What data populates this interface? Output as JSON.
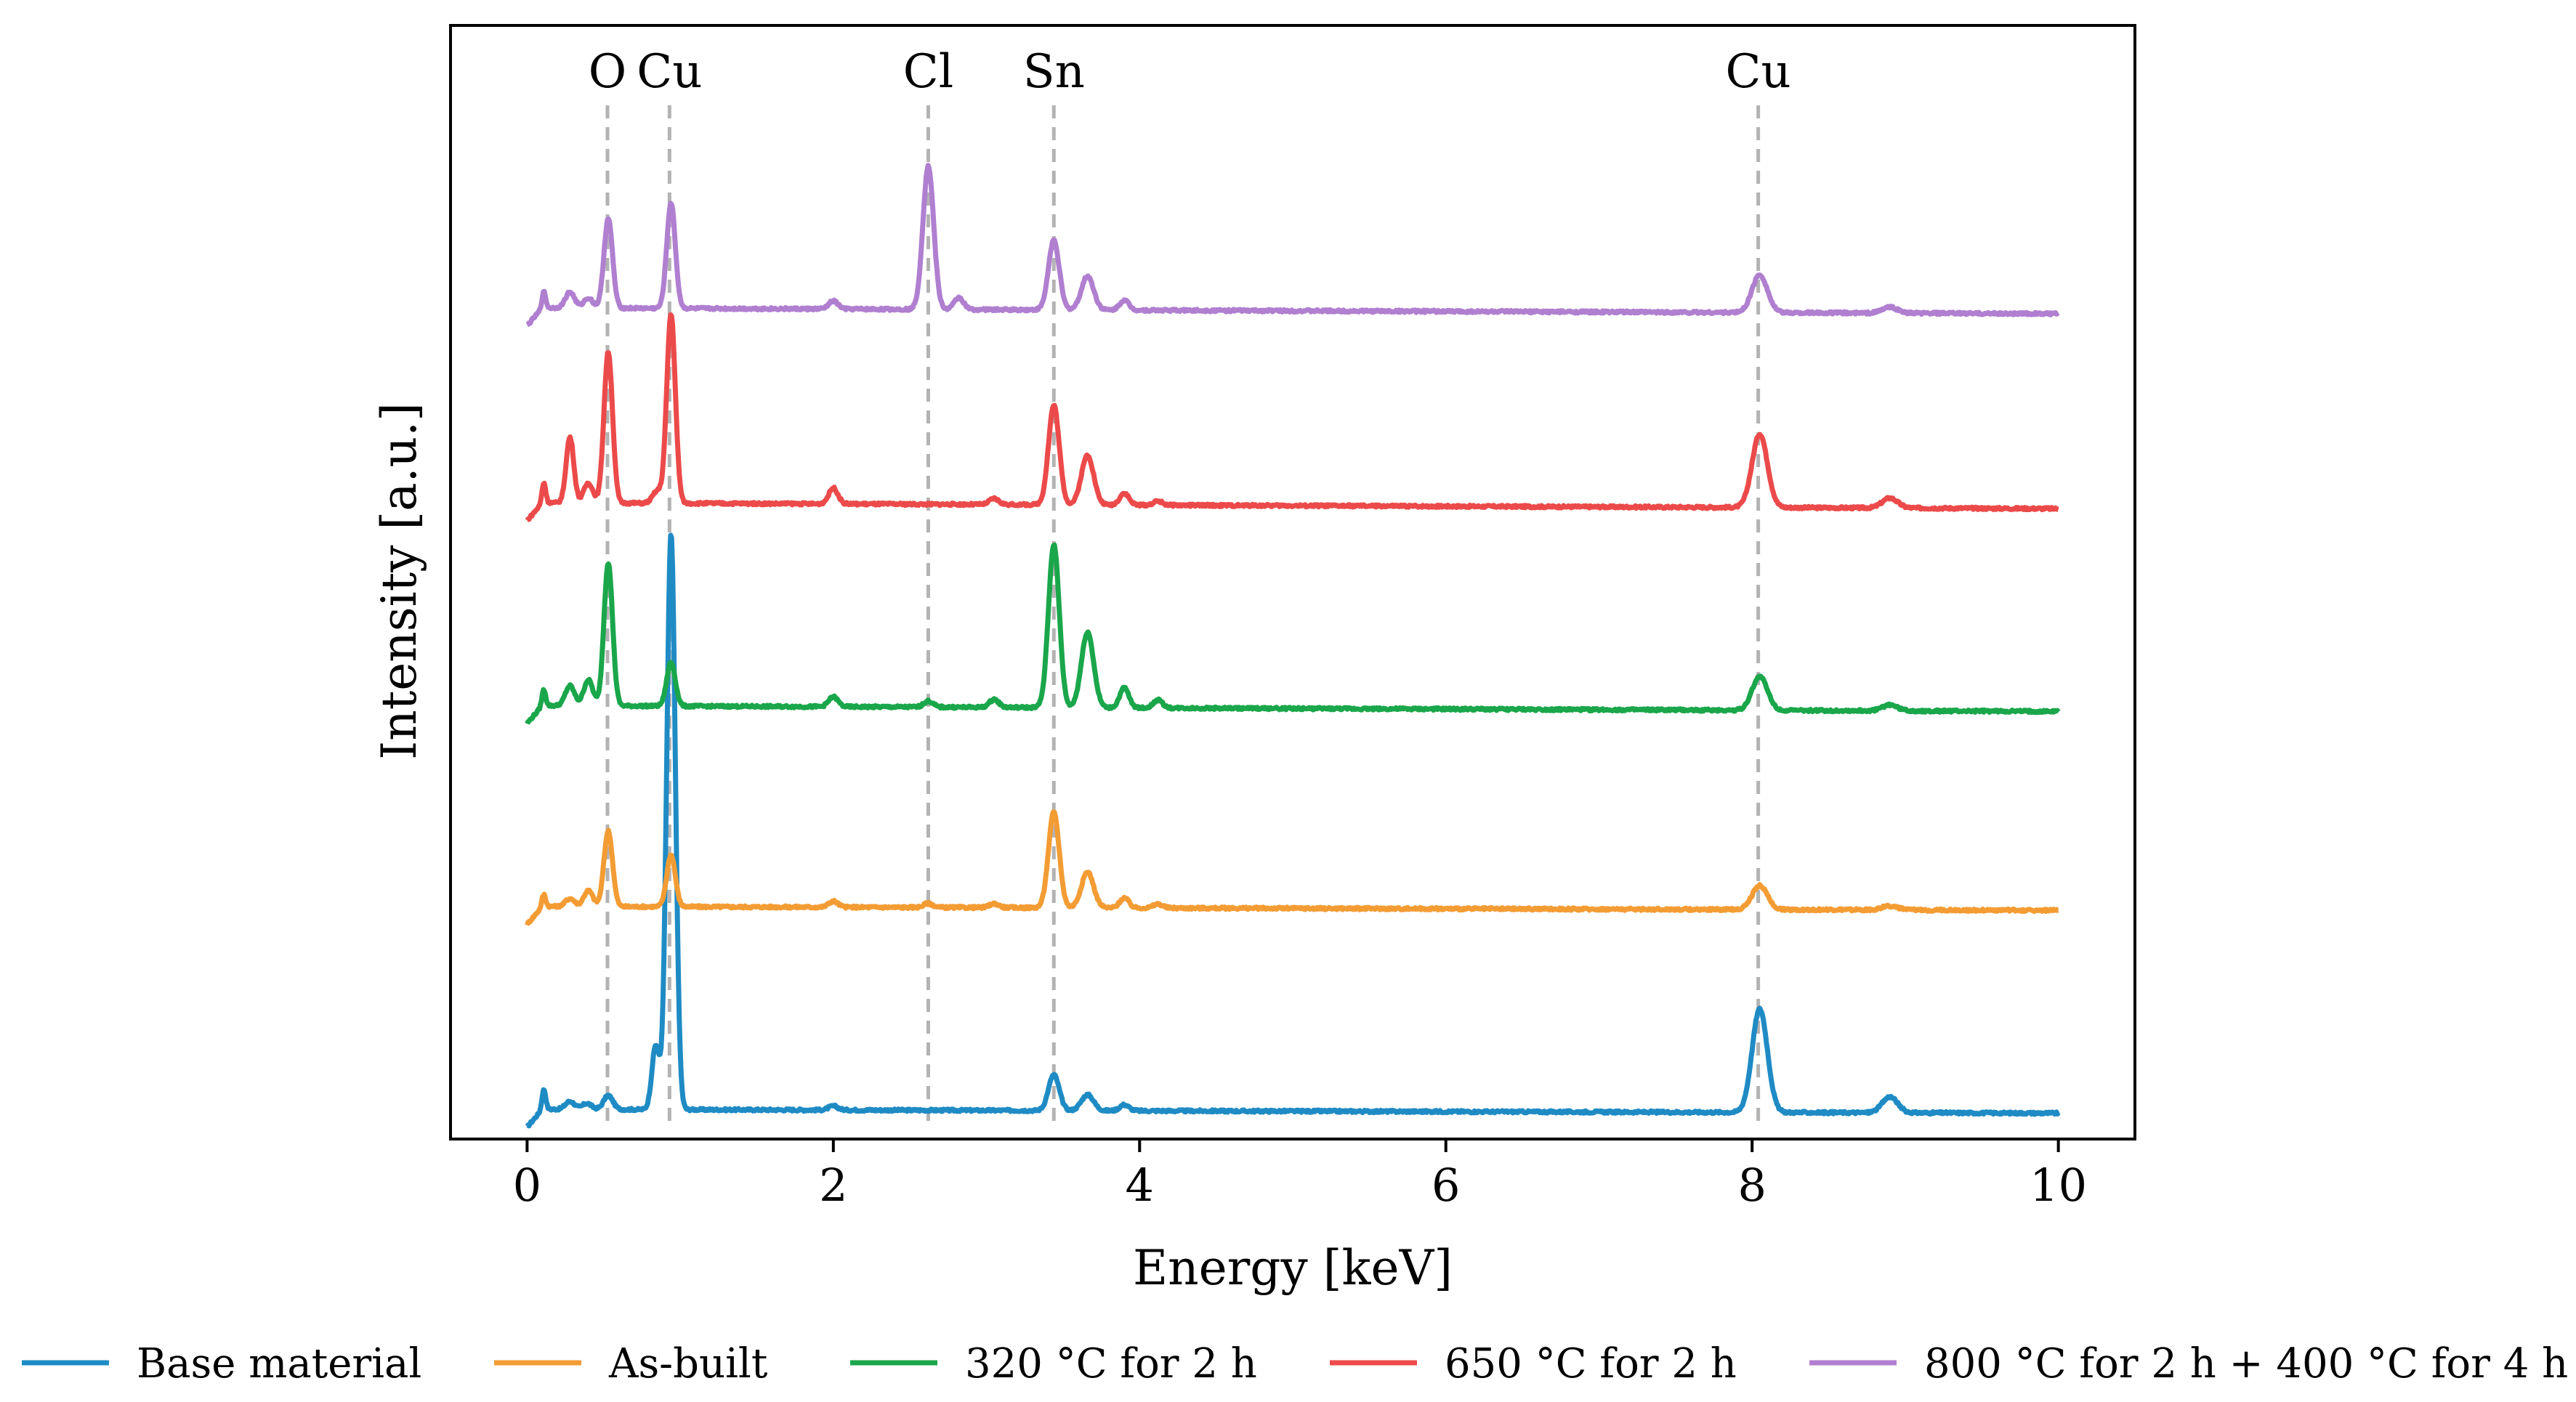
{
  "chart_data": {
    "type": "line",
    "title": "",
    "xlabel": "Energy [keV]",
    "ylabel": "Intensity [a.u.]",
    "xlim": [
      -0.5,
      10.5
    ],
    "ylim": [
      0,
      5.6
    ],
    "xticks": [
      0,
      2,
      4,
      6,
      8,
      10
    ],
    "xtick_labels": [
      "0",
      "2",
      "4",
      "6",
      "8",
      "10"
    ],
    "yticks_visible": false,
    "grid": false,
    "legend_position": "bottom",
    "element_lines": [
      {
        "label": "O",
        "energy": 0.525
      },
      {
        "label": "Cu",
        "energy": 0.93
      },
      {
        "label": "Cl",
        "energy": 2.62
      },
      {
        "label": "Sn",
        "energy": 3.44
      },
      {
        "label": "Cu",
        "energy": 8.04
      }
    ],
    "series": [
      {
        "name": "Base material",
        "color": "#1f8bc4",
        "baseline_start": 0.15,
        "baseline_end": 0.13,
        "peaks": [
          [
            0.11,
            0.1,
            0.012
          ],
          [
            0.28,
            0.04,
            0.03
          ],
          [
            0.39,
            0.03,
            0.03
          ],
          [
            0.53,
            0.07,
            0.03
          ],
          [
            0.84,
            0.32,
            0.025
          ],
          [
            0.94,
            2.9,
            0.028
          ],
          [
            2.0,
            0.02,
            0.03
          ],
          [
            3.44,
            0.18,
            0.035
          ],
          [
            3.66,
            0.08,
            0.04
          ],
          [
            3.9,
            0.03,
            0.03
          ],
          [
            8.05,
            0.52,
            0.05
          ],
          [
            8.9,
            0.08,
            0.05
          ]
        ]
      },
      {
        "name": "As-built",
        "color": "#f39c34",
        "baseline_start": 1.17,
        "baseline_end": 1.15,
        "peaks": [
          [
            0.11,
            0.06,
            0.012
          ],
          [
            0.28,
            0.04,
            0.03
          ],
          [
            0.4,
            0.08,
            0.03
          ],
          [
            0.53,
            0.38,
            0.028
          ],
          [
            0.94,
            0.26,
            0.028
          ],
          [
            2.0,
            0.03,
            0.03
          ],
          [
            2.62,
            0.02,
            0.03
          ],
          [
            3.05,
            0.02,
            0.03
          ],
          [
            3.44,
            0.48,
            0.035
          ],
          [
            3.66,
            0.18,
            0.04
          ],
          [
            3.9,
            0.05,
            0.03
          ],
          [
            4.12,
            0.02,
            0.03
          ],
          [
            8.05,
            0.12,
            0.05
          ],
          [
            8.9,
            0.02,
            0.05
          ]
        ]
      },
      {
        "name": "320 °C for 2 h",
        "color": "#1aa64a",
        "baseline_start": 2.18,
        "baseline_end": 2.15,
        "peaks": [
          [
            0.11,
            0.08,
            0.012
          ],
          [
            0.28,
            0.1,
            0.03
          ],
          [
            0.4,
            0.13,
            0.03
          ],
          [
            0.53,
            0.72,
            0.028
          ],
          [
            0.94,
            0.22,
            0.028
          ],
          [
            2.0,
            0.05,
            0.03
          ],
          [
            2.62,
            0.03,
            0.03
          ],
          [
            3.05,
            0.04,
            0.03
          ],
          [
            3.44,
            0.82,
            0.035
          ],
          [
            3.66,
            0.38,
            0.04
          ],
          [
            3.9,
            0.1,
            0.03
          ],
          [
            4.12,
            0.04,
            0.03
          ],
          [
            8.05,
            0.17,
            0.05
          ],
          [
            8.9,
            0.03,
            0.05
          ]
        ]
      },
      {
        "name": "650 °C for 2 h",
        "color": "#ec4a4a",
        "baseline_start": 3.2,
        "baseline_end": 3.17,
        "peaks": [
          [
            0.11,
            0.1,
            0.012
          ],
          [
            0.28,
            0.33,
            0.025
          ],
          [
            0.4,
            0.1,
            0.03
          ],
          [
            0.53,
            0.76,
            0.028
          ],
          [
            0.85,
            0.06,
            0.03
          ],
          [
            0.94,
            0.95,
            0.028
          ],
          [
            2.0,
            0.08,
            0.03
          ],
          [
            3.05,
            0.03,
            0.03
          ],
          [
            3.44,
            0.5,
            0.035
          ],
          [
            3.66,
            0.25,
            0.04
          ],
          [
            3.9,
            0.06,
            0.03
          ],
          [
            4.12,
            0.02,
            0.03
          ],
          [
            8.05,
            0.37,
            0.05
          ],
          [
            8.9,
            0.05,
            0.05
          ]
        ]
      },
      {
        "name": "800 °C for 2 h + 400 °C for 4 h",
        "color": "#b07fd0",
        "baseline_start": 4.18,
        "baseline_end": 4.15,
        "peaks": [
          [
            0.11,
            0.08,
            0.012
          ],
          [
            0.28,
            0.08,
            0.03
          ],
          [
            0.4,
            0.05,
            0.03
          ],
          [
            0.53,
            0.45,
            0.028
          ],
          [
            0.94,
            0.53,
            0.028
          ],
          [
            2.0,
            0.04,
            0.03
          ],
          [
            2.62,
            0.72,
            0.035
          ],
          [
            2.82,
            0.06,
            0.03
          ],
          [
            3.44,
            0.35,
            0.035
          ],
          [
            3.66,
            0.17,
            0.04
          ],
          [
            3.9,
            0.05,
            0.03
          ],
          [
            8.05,
            0.19,
            0.05
          ],
          [
            8.9,
            0.03,
            0.05
          ]
        ]
      }
    ]
  }
}
